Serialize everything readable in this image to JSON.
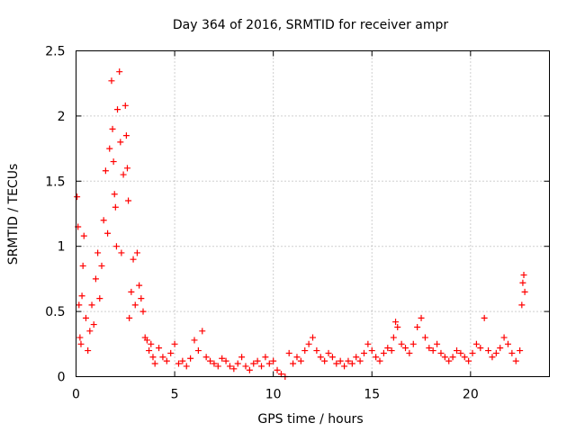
{
  "chart_data": {
    "type": "scatter",
    "title": "Day 364 of 2016, SRMTID for receiver ampr",
    "xlabel": "GPS time / hours",
    "ylabel": "SRMTID / TECUs",
    "xlim": [
      0,
      24
    ],
    "ylim": [
      0,
      2.5
    ],
    "xticks": [
      0,
      5,
      10,
      15,
      20
    ],
    "yticks": [
      0,
      0.5,
      1,
      1.5,
      2,
      2.5
    ],
    "xtick_labels": [
      "0",
      "5",
      "10",
      "15",
      "20"
    ],
    "ytick_labels": [
      "0",
      "0.5",
      "1",
      "1.5",
      "2",
      "2.5"
    ],
    "grid": true,
    "marker": "plus",
    "color": "#ff0000",
    "series": [
      {
        "name": "SRMTID",
        "x": [
          0.05,
          0.1,
          0.15,
          0.2,
          0.25,
          0.3,
          0.35,
          0.4,
          0.5,
          0.6,
          0.7,
          0.8,
          0.9,
          1.0,
          1.1,
          1.2,
          1.3,
          1.4,
          1.5,
          1.6,
          1.7,
          1.8,
          1.85,
          1.9,
          1.95,
          2.0,
          2.05,
          2.1,
          2.2,
          2.25,
          2.3,
          2.4,
          2.5,
          2.55,
          2.6,
          2.65,
          2.7,
          2.8,
          2.9,
          3.0,
          3.1,
          3.2,
          3.3,
          3.4,
          3.5,
          3.6,
          3.7,
          3.8,
          3.9,
          4.0,
          4.2,
          4.4,
          4.6,
          4.8,
          5.0,
          5.2,
          5.4,
          5.6,
          5.8,
          6.0,
          6.2,
          6.4,
          6.6,
          6.8,
          7.0,
          7.2,
          7.4,
          7.6,
          7.8,
          8.0,
          8.2,
          8.4,
          8.6,
          8.8,
          9.0,
          9.2,
          9.4,
          9.6,
          9.8,
          10.0,
          10.2,
          10.4,
          10.6,
          10.8,
          11.0,
          11.2,
          11.4,
          11.6,
          11.8,
          12.0,
          12.2,
          12.4,
          12.6,
          12.8,
          13.0,
          13.2,
          13.4,
          13.6,
          13.8,
          14.0,
          14.2,
          14.4,
          14.6,
          14.8,
          15.0,
          15.2,
          15.4,
          15.6,
          15.8,
          16.0,
          16.1,
          16.2,
          16.3,
          16.5,
          16.7,
          16.9,
          17.1,
          17.3,
          17.5,
          17.7,
          17.9,
          18.1,
          18.3,
          18.5,
          18.7,
          18.9,
          19.1,
          19.3,
          19.5,
          19.7,
          19.9,
          20.1,
          20.3,
          20.5,
          20.7,
          20.9,
          21.1,
          21.3,
          21.5,
          21.7,
          21.9,
          22.1,
          22.3,
          22.5,
          22.6,
          22.65,
          22.7,
          22.75
        ],
        "y": [
          1.38,
          1.15,
          0.55,
          0.3,
          0.25,
          0.62,
          0.85,
          1.08,
          0.45,
          0.2,
          0.35,
          0.55,
          0.4,
          0.75,
          0.95,
          0.6,
          0.85,
          1.2,
          1.58,
          1.1,
          1.75,
          2.27,
          1.9,
          1.65,
          1.4,
          1.3,
          1.0,
          2.05,
          2.34,
          1.8,
          0.95,
          1.55,
          2.08,
          1.85,
          1.6,
          1.35,
          0.45,
          0.65,
          0.9,
          0.55,
          0.95,
          0.7,
          0.6,
          0.5,
          0.3,
          0.28,
          0.2,
          0.25,
          0.15,
          0.1,
          0.22,
          0.15,
          0.12,
          0.18,
          0.25,
          0.1,
          0.12,
          0.08,
          0.14,
          0.28,
          0.2,
          0.35,
          0.15,
          0.12,
          0.1,
          0.08,
          0.14,
          0.12,
          0.08,
          0.06,
          0.1,
          0.15,
          0.08,
          0.05,
          0.1,
          0.12,
          0.08,
          0.15,
          0.1,
          0.12,
          0.05,
          0.02,
          0.0,
          0.18,
          0.1,
          0.15,
          0.12,
          0.2,
          0.25,
          0.3,
          0.2,
          0.15,
          0.12,
          0.18,
          0.15,
          0.1,
          0.12,
          0.08,
          0.12,
          0.1,
          0.15,
          0.12,
          0.18,
          0.25,
          0.2,
          0.15,
          0.12,
          0.18,
          0.22,
          0.2,
          0.3,
          0.42,
          0.38,
          0.25,
          0.22,
          0.18,
          0.25,
          0.38,
          0.45,
          0.3,
          0.22,
          0.2,
          0.25,
          0.18,
          0.15,
          0.12,
          0.15,
          0.2,
          0.18,
          0.15,
          0.12,
          0.18,
          0.25,
          0.22,
          0.45,
          0.2,
          0.15,
          0.18,
          0.22,
          0.3,
          0.25,
          0.18,
          0.12,
          0.2,
          0.55,
          0.72,
          0.78,
          0.65
        ]
      }
    ]
  }
}
